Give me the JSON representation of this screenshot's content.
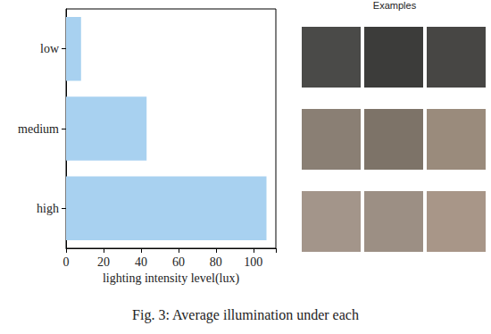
{
  "chart_data": {
    "type": "bar",
    "orientation": "horizontal",
    "categories": [
      "low",
      "medium",
      "high"
    ],
    "values": [
      8,
      43,
      107
    ],
    "color": "#a8d1f0",
    "xlabel": "lighting intensity level(lux)",
    "xlim": [
      0,
      112
    ],
    "xticks": [
      0,
      20,
      40,
      60,
      80,
      100
    ],
    "grid": false
  },
  "panel": {
    "title": "Examples"
  },
  "caption": "Fig. 3: Average illumination under each"
}
